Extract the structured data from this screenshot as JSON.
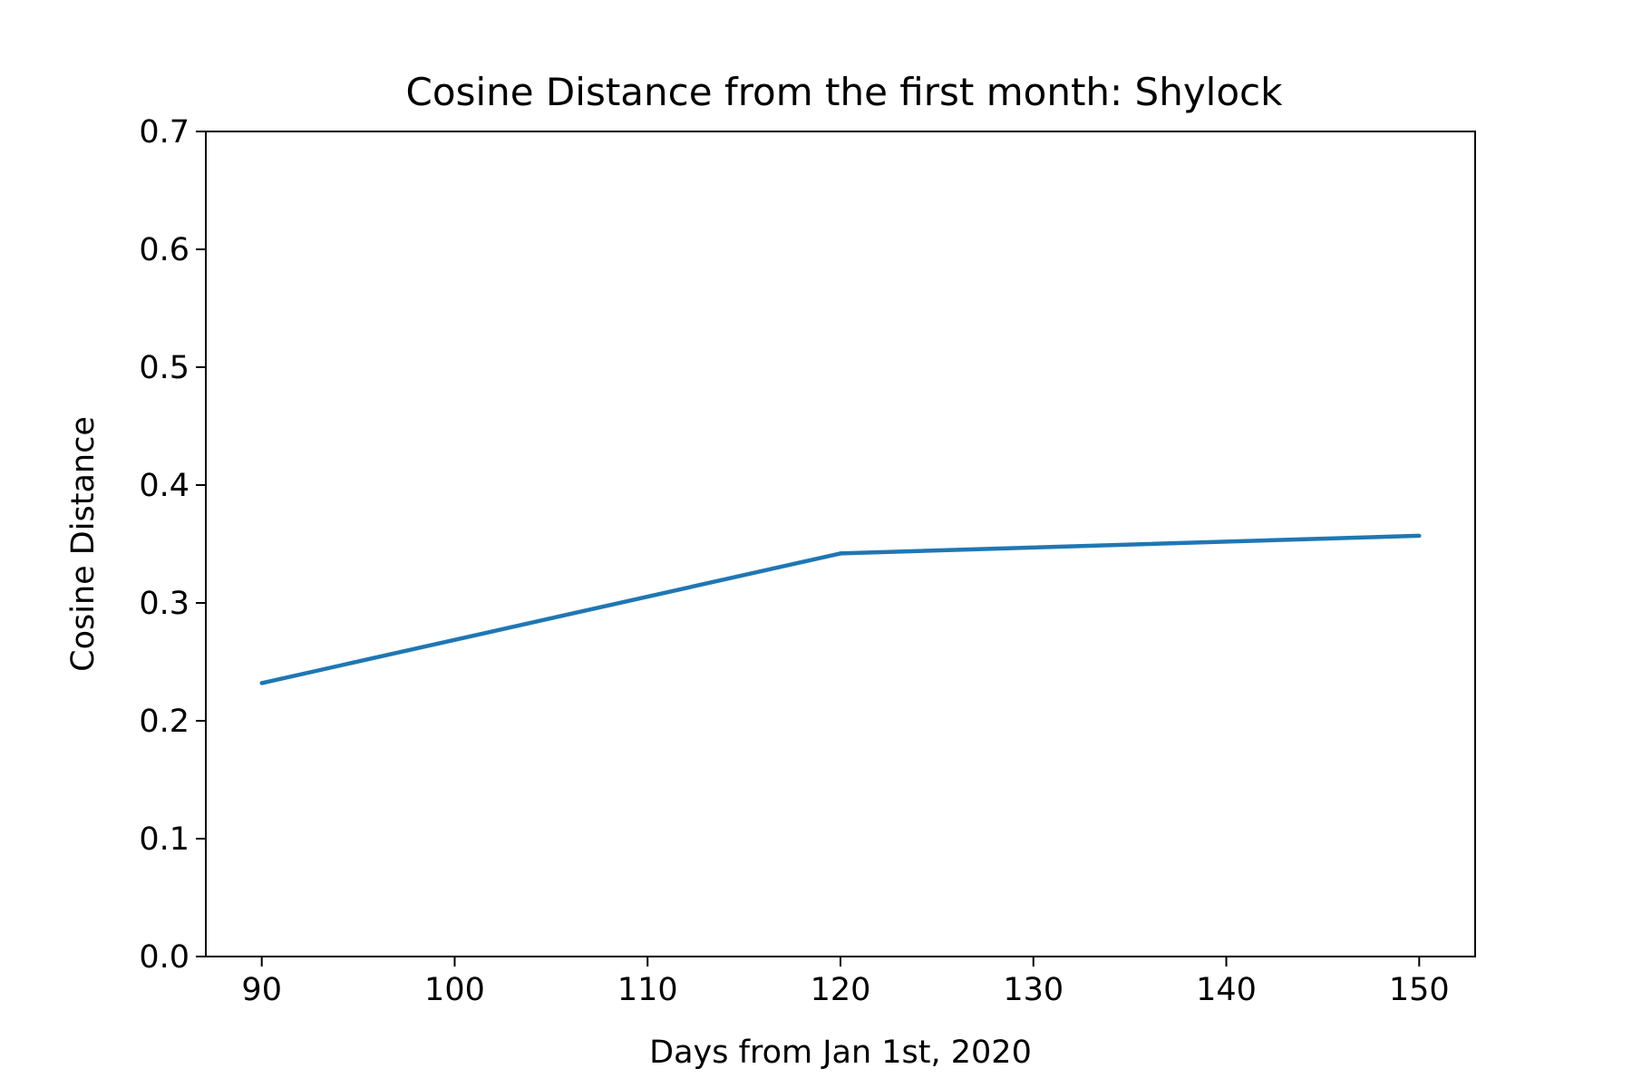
{
  "chart_data": {
    "type": "line",
    "title": "Cosine Distance from the first month: Shylock",
    "xlabel": "Days from Jan 1st, 2020",
    "ylabel": "Cosine Distance",
    "xlim": [
      87.1,
      152.9
    ],
    "ylim": [
      0.0,
      0.7
    ],
    "xticks": [
      90,
      100,
      110,
      120,
      130,
      140,
      150
    ],
    "xtick_labels": [
      "90",
      "100",
      "110",
      "120",
      "130",
      "140",
      "150"
    ],
    "yticks": [
      0.0,
      0.1,
      0.2,
      0.3,
      0.4,
      0.5,
      0.6,
      0.7
    ],
    "ytick_labels": [
      "0.0",
      "0.1",
      "0.2",
      "0.3",
      "0.4",
      "0.5",
      "0.6",
      "0.7"
    ],
    "grid": false,
    "legend": "none",
    "series": [
      {
        "color": "#1f77b4",
        "x": [
          90,
          120,
          150
        ],
        "y": [
          0.232,
          0.342,
          0.357
        ]
      }
    ]
  }
}
